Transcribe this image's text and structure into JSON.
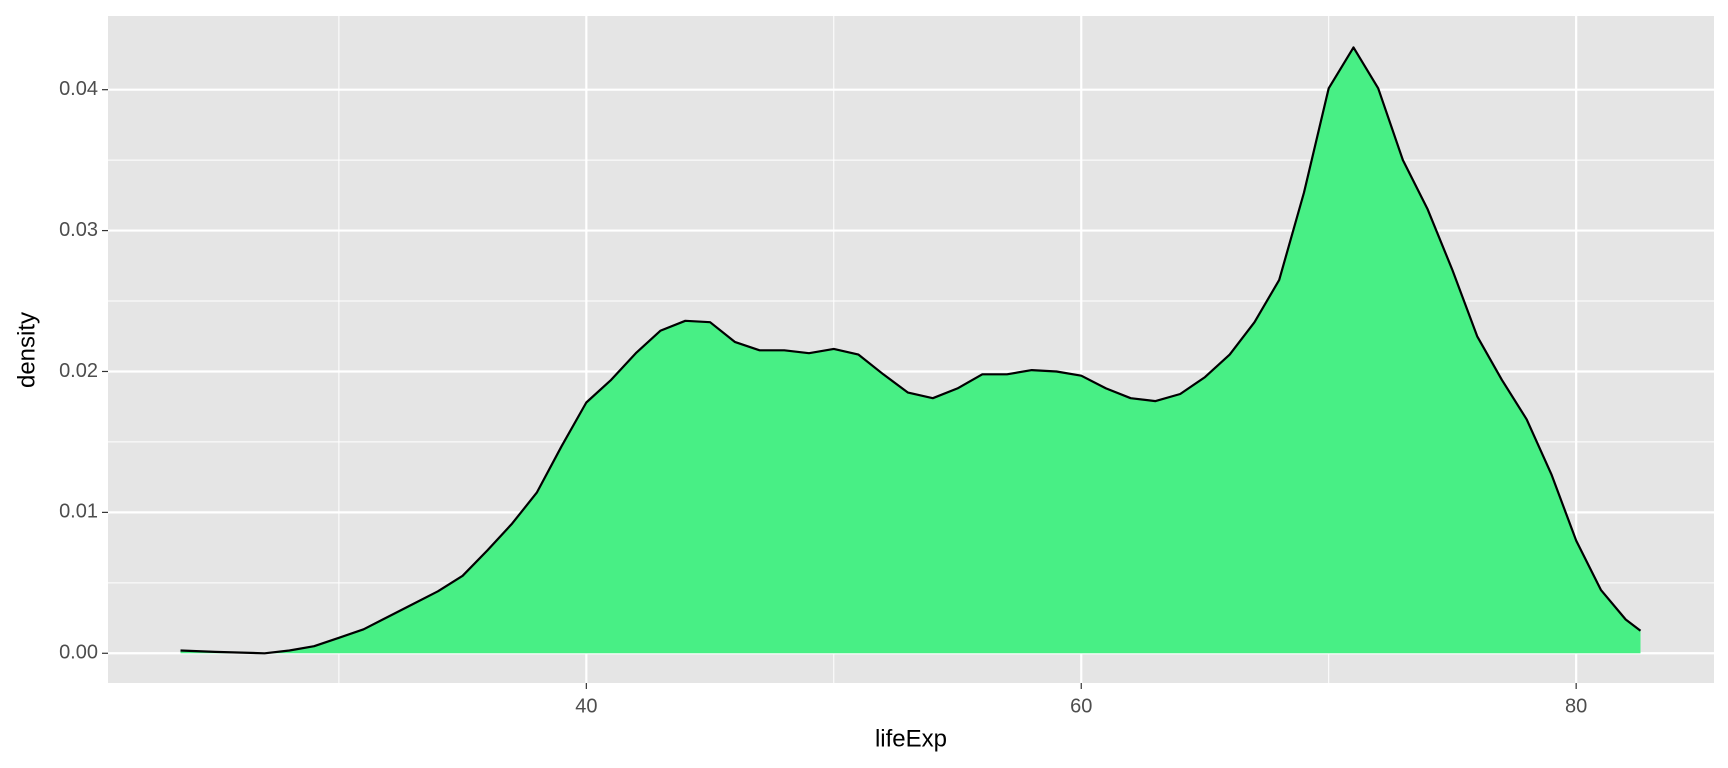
{
  "chart_data": {
    "type": "density",
    "x_label": "lifeExp",
    "y_label": "density",
    "x": [
      23.6,
      25,
      27,
      28,
      29,
      30,
      31,
      32,
      33,
      34,
      35,
      36,
      37,
      38,
      39,
      40,
      41,
      42,
      43,
      44,
      45,
      46,
      47,
      48,
      49,
      50,
      51,
      52,
      53,
      54,
      55,
      56,
      57,
      58,
      59,
      60,
      61,
      62,
      63,
      64,
      65,
      66,
      67,
      68,
      69,
      70,
      71,
      72,
      73,
      74,
      75,
      76,
      77,
      78,
      79,
      80,
      81,
      82,
      82.6
    ],
    "values": [
      0.0002,
      0.0001,
      0.0,
      0.0002,
      0.0005,
      0.0011,
      0.0017,
      0.0026,
      0.0035,
      0.0044,
      0.0055,
      0.0073,
      0.0092,
      0.0114,
      0.0147,
      0.0178,
      0.0194,
      0.0213,
      0.0229,
      0.0236,
      0.0235,
      0.0221,
      0.0215,
      0.0215,
      0.0213,
      0.0216,
      0.0212,
      0.0198,
      0.0185,
      0.0181,
      0.0188,
      0.0198,
      0.0198,
      0.0201,
      0.02,
      0.0197,
      0.0188,
      0.0181,
      0.0179,
      0.0184,
      0.0196,
      0.0212,
      0.0235,
      0.0265,
      0.0327,
      0.0401,
      0.043,
      0.0401,
      0.035,
      0.0315,
      0.0272,
      0.0225,
      0.0194,
      0.0166,
      0.0127,
      0.008,
      0.0045,
      0.0024,
      0.0016
    ],
    "color": "#48ef85",
    "line_color": "#000000",
    "xlim": [
      20.67,
      85.57
    ],
    "xticks": [
      40,
      60,
      80
    ],
    "ylim": [
      -0.00211,
      0.04523
    ],
    "yticks": [
      {
        "value": 0,
        "label": "0.00"
      },
      0.01,
      0.02,
      0.03,
      0.04
    ],
    "grid": true
  }
}
